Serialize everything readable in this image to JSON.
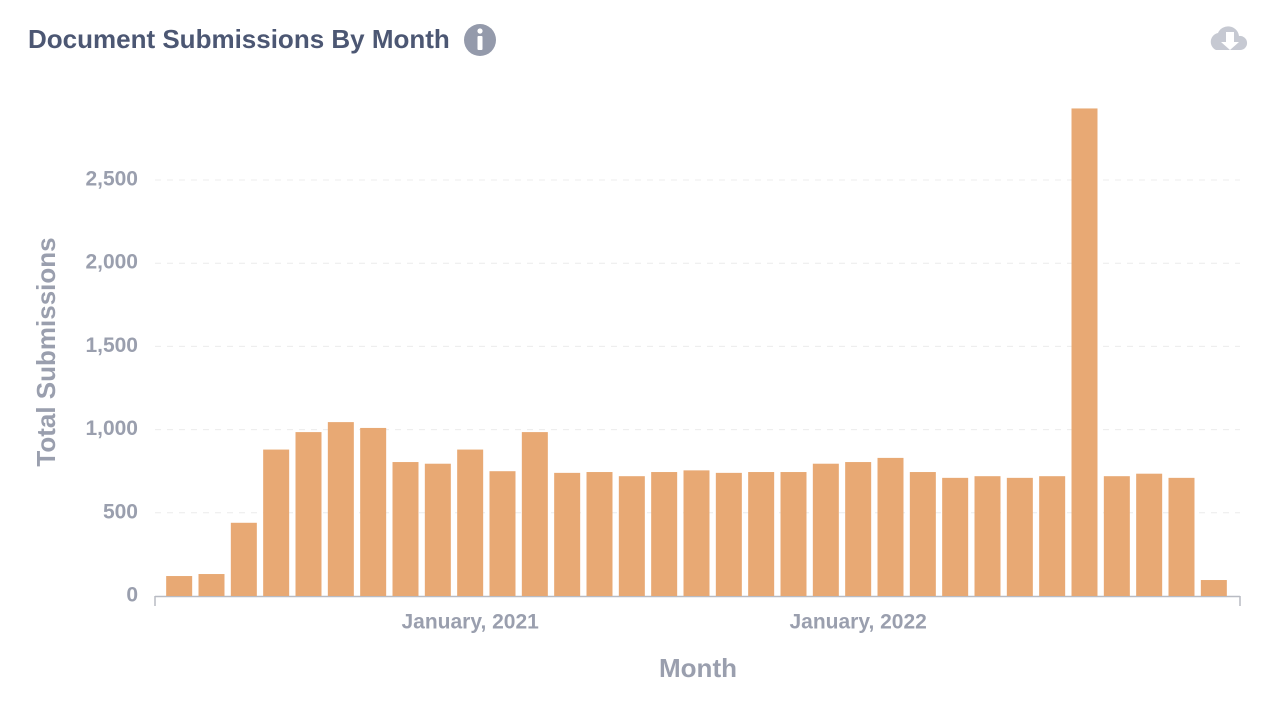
{
  "chart_data": {
    "type": "bar",
    "title": "Document Submissions By Month",
    "x_label": "Month",
    "y_label": "Total Submissions",
    "categories": [
      null,
      null,
      null,
      null,
      null,
      null,
      null,
      null,
      null,
      "January, 2021",
      null,
      null,
      null,
      null,
      null,
      null,
      null,
      null,
      null,
      null,
      null,
      "January, 2022",
      null,
      null,
      null,
      null,
      null,
      null,
      null,
      null,
      null,
      null,
      null
    ],
    "values": [
      120,
      132,
      440,
      880,
      985,
      1045,
      1010,
      805,
      795,
      880,
      750,
      985,
      740,
      745,
      720,
      745,
      755,
      740,
      745,
      745,
      795,
      805,
      830,
      745,
      710,
      720,
      710,
      720,
      2930,
      720,
      735,
      710,
      96
    ],
    "color": "#e8a974",
    "ylim": [
      0,
      3000
    ],
    "yticks": [
      0,
      500,
      {
        "value": 1000,
        "label": "1,000"
      },
      {
        "value": 1500,
        "label": "1,500"
      },
      {
        "value": 2000,
        "label": "2,000"
      },
      {
        "value": 2500,
        "label": "2,500"
      }
    ],
    "grid": true
  }
}
